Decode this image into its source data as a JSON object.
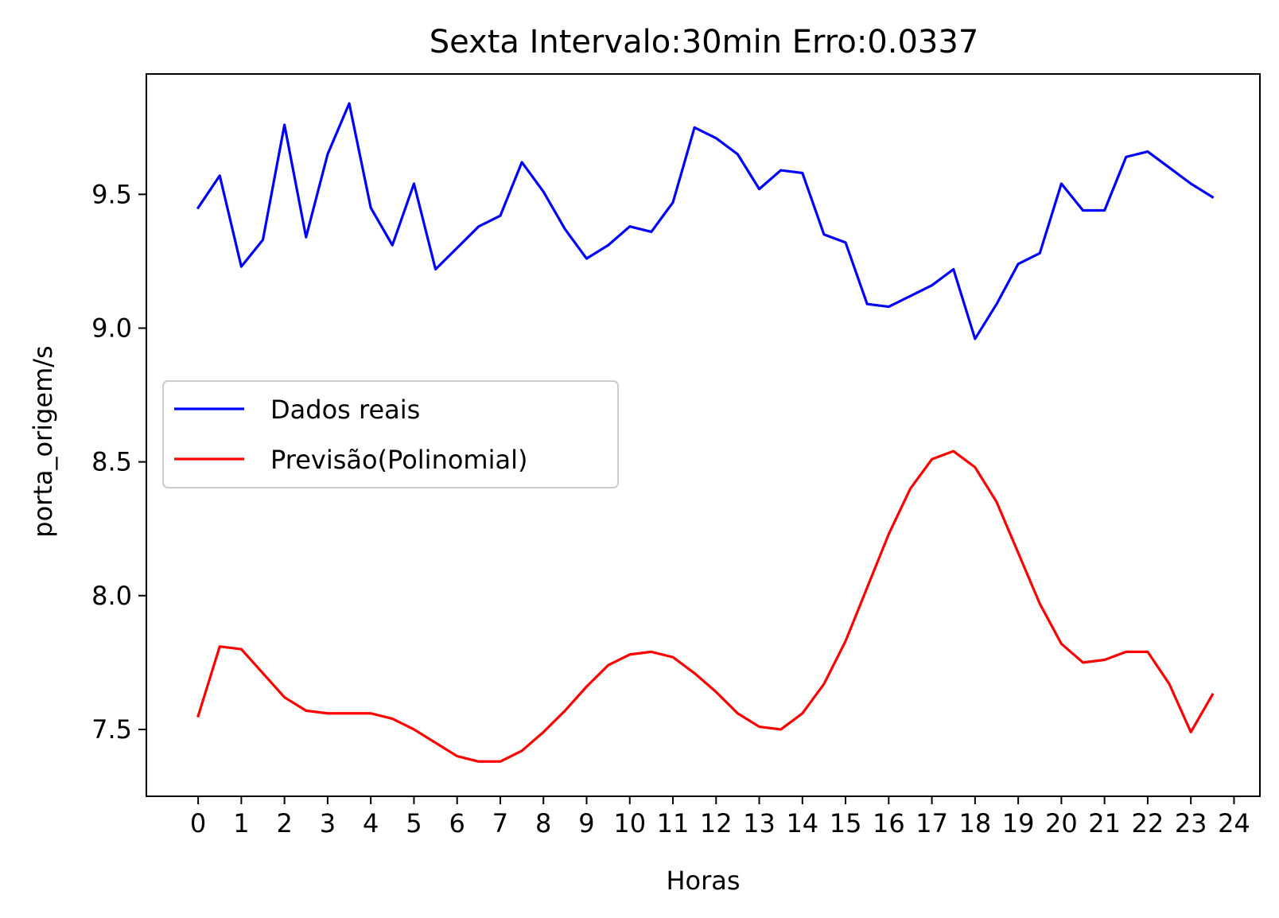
{
  "chart_data": {
    "type": "line",
    "title": "Sexta Intervalo:30min Erro:0.0337",
    "xlabel": "Horas",
    "ylabel": "porta_origem/s",
    "xlim": [
      -1.2,
      24.6
    ],
    "ylim": [
      7.25,
      9.95
    ],
    "xticks": [
      0,
      1,
      2,
      3,
      4,
      5,
      6,
      7,
      8,
      9,
      10,
      11,
      12,
      13,
      14,
      15,
      16,
      17,
      18,
      19,
      20,
      21,
      22,
      23,
      24
    ],
    "xtick_labels": [
      "0",
      "1",
      "2",
      "3",
      "4",
      "5",
      "6",
      "7",
      "8",
      "9",
      "10",
      "11",
      "12",
      "13",
      "14",
      "15",
      "16",
      "17",
      "18",
      "19",
      "20",
      "21",
      "22",
      "23",
      "24"
    ],
    "yticks": [
      7.5,
      8.0,
      8.5,
      9.0,
      9.5
    ],
    "ytick_labels": [
      "7.5",
      "8.0",
      "8.5",
      "9.0",
      "9.5"
    ],
    "grid": false,
    "legend_position": "center-left",
    "x": [
      0,
      0.5,
      1,
      1.5,
      2,
      2.5,
      3,
      3.5,
      4,
      4.5,
      5,
      5.5,
      6,
      6.5,
      7,
      7.5,
      8,
      8.5,
      9,
      9.5,
      10,
      10.5,
      11,
      11.5,
      12,
      12.5,
      13,
      13.5,
      14,
      14.5,
      15,
      15.5,
      16,
      16.5,
      17,
      17.5,
      18,
      18.5,
      19,
      19.5,
      20,
      20.5,
      21,
      21.5,
      22,
      22.5,
      23,
      23.5
    ],
    "series": [
      {
        "name": "Dados reais",
        "color": "#0000ff",
        "values": [
          9.45,
          9.57,
          9.23,
          9.33,
          9.76,
          9.34,
          9.65,
          9.84,
          9.45,
          9.31,
          9.54,
          9.22,
          9.3,
          9.38,
          9.42,
          9.62,
          9.51,
          9.37,
          9.26,
          9.31,
          9.38,
          9.36,
          9.47,
          9.75,
          9.71,
          9.65,
          9.52,
          9.59,
          9.58,
          9.35,
          9.32,
          9.09,
          9.08,
          9.12,
          9.16,
          9.22,
          8.96,
          9.09,
          9.24,
          9.28,
          9.54,
          9.44,
          9.44,
          9.64,
          9.66,
          9.6,
          9.54,
          9.49
        ]
      },
      {
        "name": "Previsão(Polinomial)",
        "color": "#ff0000",
        "values": [
          7.55,
          7.81,
          7.8,
          7.71,
          7.62,
          7.57,
          7.56,
          7.56,
          7.56,
          7.54,
          7.5,
          7.45,
          7.4,
          7.38,
          7.38,
          7.42,
          7.49,
          7.57,
          7.66,
          7.74,
          7.78,
          7.79,
          7.77,
          7.71,
          7.64,
          7.56,
          7.51,
          7.5,
          7.56,
          7.67,
          7.83,
          8.03,
          8.23,
          8.4,
          8.51,
          8.54,
          8.48,
          8.35,
          8.16,
          7.97,
          7.82,
          7.75,
          7.76,
          7.79,
          7.79,
          7.67,
          7.49,
          7.63
        ]
      }
    ]
  }
}
